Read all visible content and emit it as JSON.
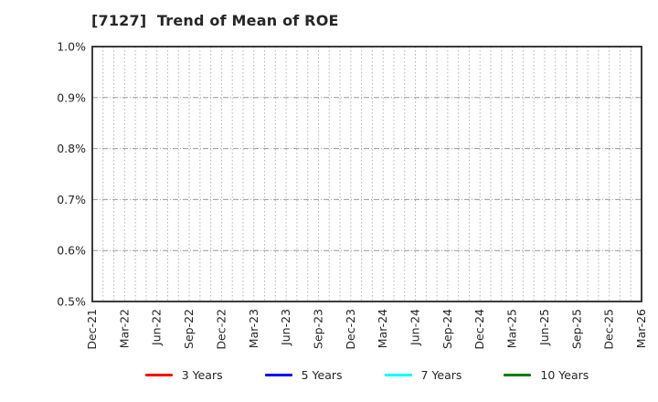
{
  "chart_data": {
    "type": "line",
    "title": "[7127]  Trend of Mean of ROE",
    "xlabel": "",
    "ylabel": "",
    "ylim": [
      0.5,
      1.0
    ],
    "y_tick_labels": [
      "1.0%",
      "0.9%",
      "0.8%",
      "0.7%",
      "0.6%",
      "0.5%"
    ],
    "y_tick_values": [
      1.0,
      0.9,
      0.8,
      0.7,
      0.6,
      0.5
    ],
    "x_tick_labels": [
      "Dec-21",
      "Mar-22",
      "Jun-22",
      "Sep-22",
      "Dec-22",
      "Mar-23",
      "Jun-23",
      "Sep-23",
      "Dec-23",
      "Mar-24",
      "Jun-24",
      "Sep-24",
      "Dec-24",
      "Mar-25",
      "Jun-25",
      "Sep-25",
      "Dec-25",
      "Mar-26"
    ],
    "x_tick_interval_months": 3,
    "minor_grid_interval_months": 1,
    "grid": "on",
    "legend_position": "bottom",
    "series": [
      {
        "name": "3 Years",
        "color": "#ff0000",
        "values": []
      },
      {
        "name": "5 Years",
        "color": "#0000ff",
        "values": []
      },
      {
        "name": "7 Years",
        "color": "#00ffff",
        "values": []
      },
      {
        "name": "10 Years",
        "color": "#008000",
        "values": []
      }
    ],
    "note": "plot area contains no visible data lines"
  },
  "style_colors": {
    "axis_border": "#262626",
    "major_gridline": "#999999",
    "minor_gridline": "#b3b3b3",
    "text": "#262626"
  }
}
